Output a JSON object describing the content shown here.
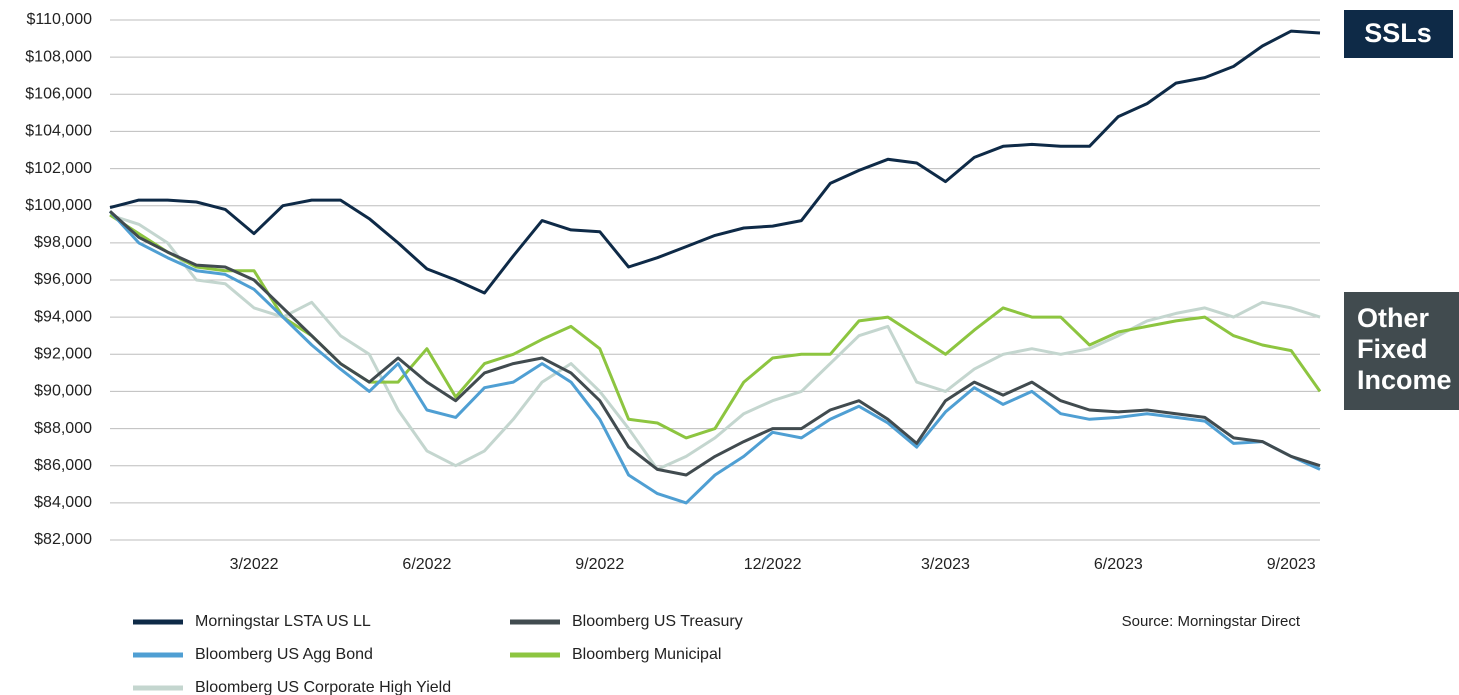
{
  "chart_data": {
    "type": "line",
    "categories": [
      null,
      null,
      null,
      null,
      null,
      "3/2022",
      null,
      null,
      null,
      null,
      null,
      "6/2022",
      null,
      null,
      null,
      null,
      null,
      "9/2022",
      null,
      null,
      null,
      null,
      null,
      "12/2022",
      null,
      null,
      null,
      null,
      null,
      "3/2023",
      null,
      null,
      null,
      null,
      null,
      "6/2023",
      null,
      null,
      null,
      null,
      null,
      "9/2023",
      null
    ],
    "series": [
      {
        "name": "Morningstar LSTA US LL",
        "color": "#0e2a47",
        "values": [
          99900,
          100300,
          100300,
          100200,
          99800,
          98500,
          100000,
          100300,
          100300,
          99300,
          98000,
          96600,
          96000,
          95300,
          97300,
          99200,
          98700,
          98600,
          96700,
          97200,
          97800,
          98400,
          98800,
          98900,
          99200,
          101200,
          101900,
          102500,
          102300,
          101300,
          102600,
          103200,
          103300,
          103200,
          103200,
          104800,
          105500,
          106600,
          106900,
          107500,
          108600,
          109400,
          109300
        ]
      },
      {
        "name": "Bloomberg US Treasury",
        "color": "#414b4f",
        "values": [
          99700,
          98300,
          97500,
          96800,
          96700,
          96000,
          94500,
          93000,
          91500,
          90500,
          91800,
          90500,
          89500,
          91000,
          91500,
          91800,
          91000,
          89500,
          87000,
          85800,
          85500,
          86500,
          87300,
          88000,
          88000,
          89000,
          89500,
          88500,
          87200,
          89500,
          90500,
          89800,
          90500,
          89500,
          89000,
          88900,
          89000,
          88800,
          88600,
          87500,
          87300,
          86500,
          86000
        ]
      },
      {
        "name": "Bloomberg US Agg Bond",
        "color": "#4f9fd3",
        "values": [
          99700,
          98000,
          97200,
          96500,
          96300,
          95500,
          94000,
          92500,
          91200,
          90000,
          91500,
          89000,
          88600,
          90200,
          90500,
          91500,
          90500,
          88500,
          85500,
          84500,
          84000,
          85500,
          86500,
          87800,
          87500,
          88500,
          89200,
          88300,
          87000,
          88900,
          90200,
          89300,
          90000,
          88800,
          88500,
          88600,
          88800,
          88600,
          88400,
          87200,
          87300,
          86500,
          85800
        ]
      },
      {
        "name": "Bloomberg Municipal",
        "color": "#8dc540",
        "values": [
          99500,
          98500,
          97500,
          96700,
          96500,
          96500,
          94000,
          93000,
          91500,
          90500,
          90500,
          92300,
          89700,
          91500,
          92000,
          92800,
          93500,
          92300,
          88500,
          88300,
          87500,
          88000,
          90500,
          91800,
          92000,
          92000,
          93800,
          94000,
          93000,
          92000,
          93300,
          94500,
          94000,
          94000,
          92500,
          93200,
          93500,
          93800,
          94000,
          93000,
          92500,
          92200,
          90000
        ]
      },
      {
        "name": "Bloomberg US Corporate High Yield",
        "color": "#c4d6cf",
        "values": [
          99500,
          99000,
          98000,
          96000,
          95800,
          94500,
          94000,
          94800,
          93000,
          92000,
          89000,
          86800,
          86000,
          86800,
          88500,
          90500,
          91500,
          90000,
          88000,
          85800,
          86500,
          87500,
          88800,
          89500,
          90000,
          91500,
          93000,
          93500,
          90500,
          90000,
          91200,
          92000,
          92300,
          92000,
          92300,
          93000,
          93800,
          94200,
          94500,
          94000,
          94800,
          94500,
          94000
        ]
      }
    ],
    "ylim": [
      82000,
      110000
    ],
    "yticks": [
      {
        "value": 82000,
        "label": "$82,000"
      },
      {
        "value": 84000,
        "label": "$84,000"
      },
      {
        "value": 86000,
        "label": "$86,000"
      },
      {
        "value": 88000,
        "label": "$88,000"
      },
      {
        "value": 90000,
        "label": "$90,000"
      },
      {
        "value": 92000,
        "label": "$92,000"
      },
      {
        "value": 94000,
        "label": "$94,000"
      },
      {
        "value": 96000,
        "label": "$96,000"
      },
      {
        "value": 98000,
        "label": "$98,000"
      },
      {
        "value": 100000,
        "label": "$100,000"
      },
      {
        "value": 102000,
        "label": "$102,000"
      },
      {
        "value": 104000,
        "label": "$104,000"
      },
      {
        "value": 106000,
        "label": "$106,000"
      },
      {
        "value": 108000,
        "label": "$108,000"
      },
      {
        "value": 110000,
        "label": "$110,000"
      }
    ],
    "grid": true,
    "source": "Source: Morningstar Direct",
    "annotations": [
      {
        "text": "SSLs",
        "color": "#0e2a47"
      },
      {
        "lines": [
          "Other",
          "Fixed",
          "Income"
        ],
        "color": "#414b4f"
      }
    ]
  }
}
